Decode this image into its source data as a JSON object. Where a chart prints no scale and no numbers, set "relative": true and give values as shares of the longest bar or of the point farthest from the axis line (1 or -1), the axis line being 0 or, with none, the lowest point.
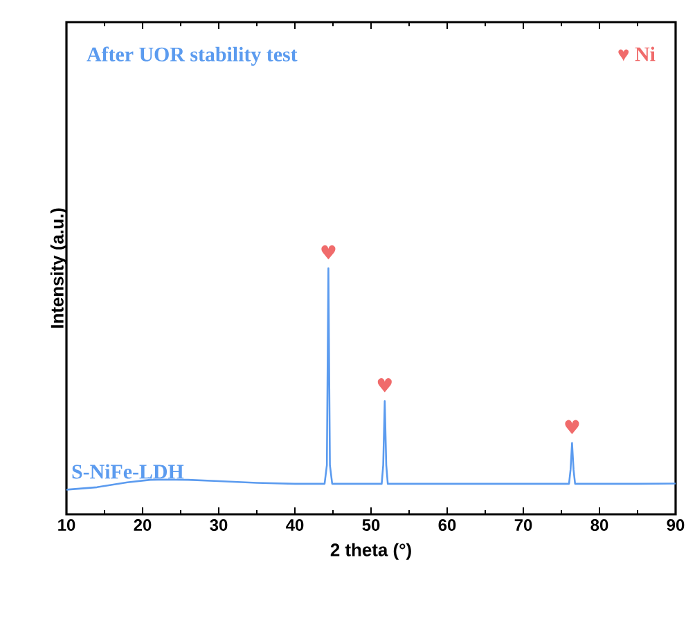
{
  "chart_data": {
    "type": "line",
    "relative": true,
    "title": "After UOR stability test",
    "xlabel": "2 theta (°)",
    "ylabel": "Intensity (a.u.)",
    "xlim": [
      10,
      90
    ],
    "xticks": [
      10,
      20,
      30,
      40,
      50,
      60,
      70,
      80,
      90
    ],
    "tick_labels": "x",
    "grid": false,
    "series": [
      {
        "name": "S-NiFe-LDH",
        "color": "#5b9bef",
        "x": [
          10,
          14,
          18,
          21,
          23,
          26,
          30,
          35,
          40,
          43.9,
          44.2,
          44.4,
          44.6,
          44.9,
          48,
          51.4,
          51.6,
          51.8,
          52.0,
          52.2,
          60,
          70,
          76.0,
          76.2,
          76.4,
          76.6,
          76.8,
          85,
          90
        ],
        "values": [
          0.1,
          0.11,
          0.13,
          0.14,
          0.141,
          0.14,
          0.135,
          0.128,
          0.124,
          0.124,
          0.2,
          1.0,
          0.2,
          0.124,
          0.124,
          0.124,
          0.2,
          0.46,
          0.2,
          0.124,
          0.124,
          0.124,
          0.124,
          0.18,
          0.29,
          0.18,
          0.124,
          0.124,
          0.125
        ]
      }
    ],
    "annotations": [
      {
        "text": "♥",
        "x": 44.4,
        "y": 1.0
      },
      {
        "text": "♥",
        "x": 51.8,
        "y": 0.46
      },
      {
        "text": "♥",
        "x": 76.4,
        "y": 0.29
      },
      "♥ Ni"
    ]
  }
}
